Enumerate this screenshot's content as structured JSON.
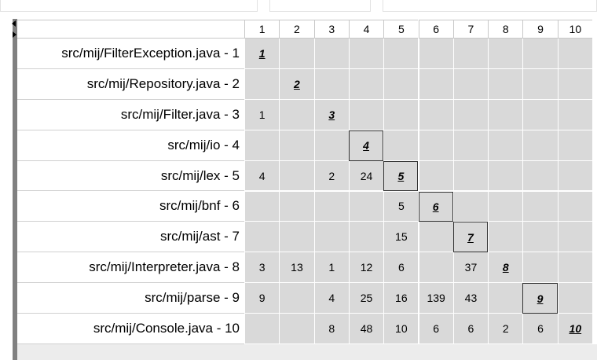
{
  "matrix": {
    "columns": [
      1,
      2,
      3,
      4,
      5,
      6,
      7,
      8,
      9,
      10
    ],
    "rows": [
      {
        "label": "src/mij/FilterException.java - 1",
        "boxed": false,
        "cells": [
          1,
          null,
          null,
          null,
          null,
          null,
          null,
          null,
          null,
          null
        ]
      },
      {
        "label": "src/mij/Repository.java - 2",
        "boxed": false,
        "cells": [
          null,
          2,
          null,
          null,
          null,
          null,
          null,
          null,
          null,
          null
        ]
      },
      {
        "label": "src/mij/Filter.java - 3",
        "boxed": false,
        "cells": [
          1,
          null,
          3,
          null,
          null,
          null,
          null,
          null,
          null,
          null
        ]
      },
      {
        "label": "src/mij/io - 4",
        "boxed": true,
        "cells": [
          null,
          null,
          null,
          4,
          null,
          null,
          null,
          null,
          null,
          null
        ]
      },
      {
        "label": "src/mij/lex - 5",
        "boxed": true,
        "cells": [
          4,
          null,
          2,
          24,
          5,
          null,
          null,
          null,
          null,
          null
        ]
      },
      {
        "label": "src/mij/bnf - 6",
        "boxed": true,
        "cells": [
          null,
          null,
          null,
          null,
          5,
          6,
          null,
          null,
          null,
          null
        ]
      },
      {
        "label": "src/mij/ast - 7",
        "boxed": true,
        "cells": [
          null,
          null,
          null,
          null,
          15,
          null,
          7,
          null,
          null,
          null
        ]
      },
      {
        "label": "src/mij/Interpreter.java - 8",
        "boxed": false,
        "cells": [
          3,
          13,
          1,
          12,
          6,
          null,
          37,
          8,
          null,
          null
        ]
      },
      {
        "label": "src/mij/parse - 9",
        "boxed": true,
        "cells": [
          9,
          null,
          4,
          25,
          16,
          139,
          43,
          null,
          9,
          null
        ]
      },
      {
        "label": "src/mij/Console.java - 10",
        "boxed": false,
        "cells": [
          null,
          null,
          8,
          48,
          10,
          6,
          6,
          2,
          6,
          10
        ]
      }
    ]
  }
}
